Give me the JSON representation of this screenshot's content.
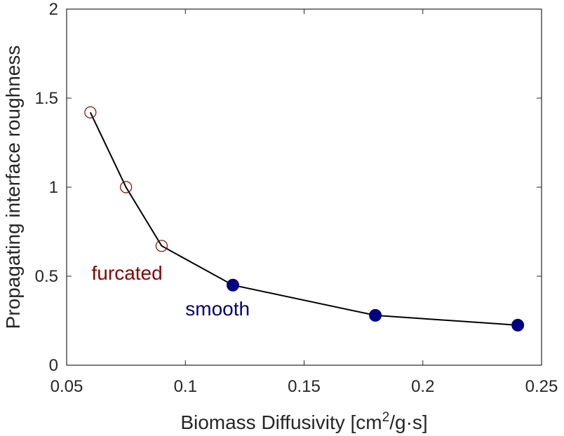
{
  "chart_data": {
    "type": "line",
    "xlabel": "Biomass Diffusivity [cm",
    "xlabel_sup": "2",
    "xlabel_tail": "/g·s]",
    "ylabel": "Propagating interface roughness",
    "xlim": [
      0.05,
      0.25
    ],
    "ylim": [
      0,
      2
    ],
    "xticks": [
      0.05,
      0.1,
      0.15,
      0.2,
      0.25
    ],
    "xtick_labels": [
      "0.05",
      "0.1",
      "0.15",
      "0.2",
      "0.25"
    ],
    "yticks": [
      0,
      0.5,
      1,
      1.5,
      2
    ],
    "ytick_labels": [
      "0",
      "0.5",
      "1",
      "1.5",
      "2"
    ],
    "grid": false,
    "line": {
      "color": "#000000",
      "x": [
        0.06,
        0.075,
        0.09,
        0.12,
        0.18,
        0.24
      ],
      "y": [
        1.42,
        1.0,
        0.67,
        0.45,
        0.28,
        0.225
      ]
    },
    "series": [
      {
        "marker": "open-circle",
        "color": "#8b0000",
        "x": [
          0.06,
          0.075,
          0.09
        ],
        "y": [
          1.42,
          1.0,
          0.67
        ]
      },
      {
        "marker": "filled-circle",
        "color": "#000080",
        "x": [
          0.12,
          0.18,
          0.24
        ],
        "y": [
          0.45,
          0.28,
          0.225
        ]
      }
    ],
    "annotations": [
      {
        "text": "furcated",
        "x": 0.0605,
        "y": 0.48,
        "color": "#8b0000"
      },
      {
        "text": "smooth",
        "x": 0.1,
        "y": 0.28,
        "color": "#000080"
      }
    ]
  }
}
